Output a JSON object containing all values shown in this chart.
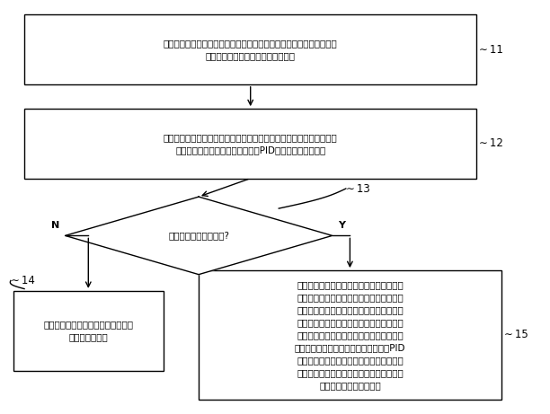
{
  "bg_color": "#ffffff",
  "line_color": "#000000",
  "box_fill": "#ffffff",
  "text_color": "#000000",
  "box1_text": "空调制冷运行，获取实时室内环境温度和设定室内目标温度，获取空调\n所在室内的目标与空调间的实时距离",
  "box1_label": "11",
  "box2_text": "计算实时室内环境温度与设定室内目标温度之间的温差，作为实时室内\n温差，根据实时室内温差进行室温PID运算，获得第一频率",
  "box2_label": "12",
  "diamond_text": "实时距离小于设定距离?",
  "diamond_label": "13",
  "N_label": "N",
  "Y_label": "Y",
  "box3_text": "执行第一控制：选择第一频率控制空\n调的压缩机运行",
  "box3_label": "14",
  "box4_text": "执行第二控制：获取空调蒸发器的实时盘管\n温度，根据已知的距离与盘管目标温度的对\n应关系确定与实时距离对应的盘管目标温度\n作为实时盘管目标温度，计算实时盘管温度\n与设定盘管目标温度之间的温差，作为实时\n盘管温差，根据实时盘管温差进行盘温PID\n运算，获得第二频率，选择第一频率和第二\n频率中的较小值作为目标频率，根据目标频\n率控制空调的压缩机运行",
  "box4_label": "15"
}
